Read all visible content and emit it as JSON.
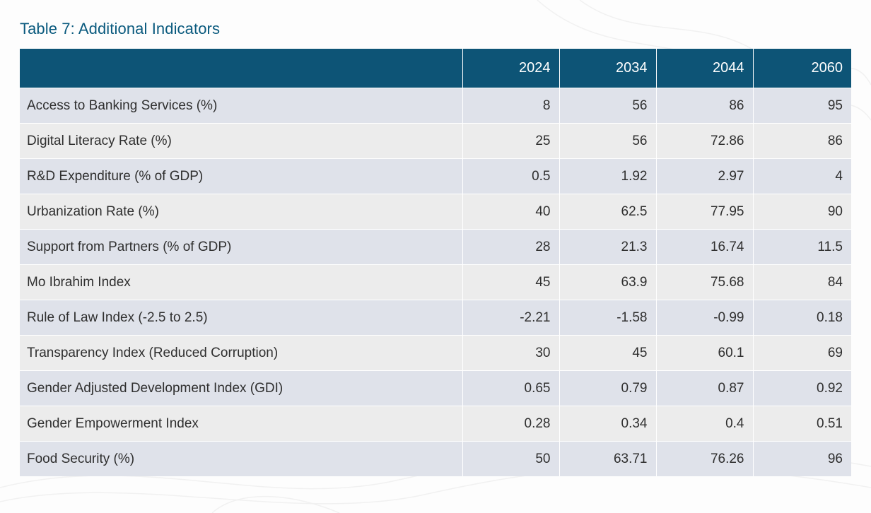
{
  "title": "Table 7: Additional Indicators",
  "header": {
    "label": "",
    "years": [
      "2024",
      "2034",
      "2044",
      "2060"
    ]
  },
  "rows": [
    {
      "label": "Access to Banking Services (%)",
      "values": [
        "8",
        "56",
        "86",
        "95"
      ]
    },
    {
      "label": "Digital Literacy Rate (%)",
      "values": [
        "25",
        "56",
        "72.86",
        "86"
      ]
    },
    {
      "label": "R&D Expenditure (% of GDP)",
      "values": [
        "0.5",
        "1.92",
        "2.97",
        "4"
      ]
    },
    {
      "label": "Urbanization Rate (%)",
      "values": [
        "40",
        "62.5",
        "77.95",
        "90"
      ]
    },
    {
      "label": "Support from Partners (% of GDP)",
      "values": [
        "28",
        "21.3",
        "16.74",
        "11.5"
      ]
    },
    {
      "label": "Mo Ibrahim Index",
      "values": [
        "45",
        "63.9",
        "75.68",
        "84"
      ]
    },
    {
      "label": "Rule of Law Index (-2.5 to 2.5)",
      "values": [
        "-2.21",
        "-1.58",
        "-0.99",
        "0.18"
      ]
    },
    {
      "label": "Transparency Index (Reduced Corruption)",
      "values": [
        "30",
        "45",
        "60.1",
        "69"
      ]
    },
    {
      "label": "Gender Adjusted Development Index (GDI)",
      "values": [
        "0.65",
        "0.79",
        "0.87",
        "0.92"
      ]
    },
    {
      "label": "Gender Empowerment Index",
      "values": [
        "0.28",
        "0.34",
        "0.4",
        "0.51"
      ]
    },
    {
      "label": "Food Security (%)",
      "values": [
        "50",
        "63.71",
        "76.26",
        "96"
      ]
    }
  ],
  "colors": {
    "title": "#0a5a7e",
    "header_bg": "#0d5476",
    "row_odd": "#dfe2ea",
    "row_even": "#ececec"
  }
}
